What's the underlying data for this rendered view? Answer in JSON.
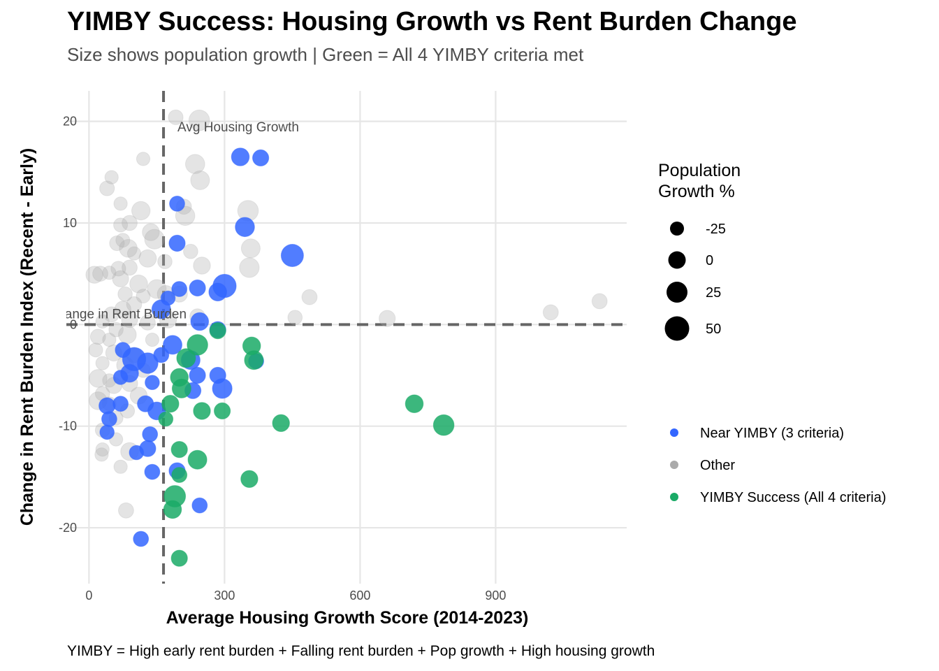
{
  "header": {
    "title": "YIMBY Success: Housing Growth vs Rent Burden Change",
    "subtitle": "Size shows population growth | Green = All 4 YIMBY criteria met"
  },
  "caption": "YIMBY = High early rent burden + Falling rent burden + Pop growth + High housing growth",
  "colors": {
    "near": "#3366ff",
    "other": "#aaaaaa",
    "success": "#1aaa66",
    "refline": "#666666",
    "grid": "#e6e6e6"
  },
  "chart_data": {
    "type": "scatter",
    "title": "YIMBY Success: Housing Growth vs Rent Burden Change",
    "subtitle": "Size shows population growth | Green = All 4 YIMBY criteria met",
    "xlabel": "Average Housing Growth Score (2014-2023)",
    "ylabel": "Change in Rent Burden Index (Recent - Early)",
    "xlim": [
      -50,
      1190
    ],
    "ylim": [
      -25.5,
      23
    ],
    "x_ticks": [
      0,
      300,
      600,
      900
    ],
    "x_tick_labels": [
      "0",
      "300",
      "600",
      "900"
    ],
    "y_ticks": [
      -20,
      -10,
      0,
      10,
      20
    ],
    "y_tick_labels": [
      "-20",
      "-10",
      "0",
      "10",
      "20"
    ],
    "grid": true,
    "reference_lines": [
      {
        "axis": "x",
        "value": 165,
        "style": "dashed",
        "label": "Avg Housing Growth"
      },
      {
        "axis": "y",
        "value": 0,
        "style": "dashed",
        "label": "No Change in Rent Burden"
      }
    ],
    "size_legend": {
      "title": "Population\nGrowth %",
      "entries": [
        {
          "label": "-25",
          "value": -25
        },
        {
          "label": "0",
          "value": 0
        },
        {
          "label": "25",
          "value": 25
        },
        {
          "label": "50",
          "value": 50
        }
      ]
    },
    "color_legend": {
      "placement": "right",
      "entries": [
        {
          "label": "Near YIMBY (3 criteria)",
          "color": "#3366ff"
        },
        {
          "label": "Other",
          "color": "#aaaaaa"
        },
        {
          "label": "YIMBY Success (All 4 criteria)",
          "color": "#1aaa66"
        }
      ]
    },
    "series": [
      {
        "name": "Other",
        "color": "#aaaaaa",
        "points": [
          [
            192,
            20.4,
            5
          ],
          [
            244,
            20.1,
            18
          ],
          [
            120,
            16.3,
            2
          ],
          [
            235,
            15.8,
            15
          ],
          [
            246,
            14.2,
            14
          ],
          [
            50,
            14.5,
            2
          ],
          [
            40,
            13.4,
            5
          ],
          [
            70,
            11.9,
            2
          ],
          [
            115,
            11.2,
            13
          ],
          [
            210,
            11.6,
            6
          ],
          [
            213,
            10.7,
            15
          ],
          [
            90,
            10.0,
            6
          ],
          [
            70,
            9.8,
            3
          ],
          [
            137,
            9.1,
            10
          ],
          [
            145,
            8.4,
            16
          ],
          [
            75,
            8.3,
            3
          ],
          [
            62,
            8.0,
            5
          ],
          [
            87,
            7.5,
            12
          ],
          [
            100,
            7.0,
            2
          ],
          [
            130,
            6.5,
            11
          ],
          [
            168,
            6.2,
            4
          ],
          [
            225,
            7.2,
            4
          ],
          [
            250,
            5.8,
            10
          ],
          [
            90,
            5.6,
            6
          ],
          [
            65,
            5.5,
            5
          ],
          [
            45,
            5.1,
            2
          ],
          [
            25,
            5.0,
            6
          ],
          [
            12,
            4.9,
            10
          ],
          [
            70,
            4.5,
            8
          ],
          [
            110,
            4.0,
            12
          ],
          [
            150,
            3.5,
            14
          ],
          [
            170,
            3.0,
            10
          ],
          [
            80,
            3.0,
            4
          ],
          [
            120,
            2.8,
            3
          ],
          [
            100,
            2.0,
            6
          ],
          [
            75,
            1.5,
            8
          ],
          [
            50,
            1.0,
            6
          ],
          [
            90,
            0.5,
            8
          ],
          [
            30,
            0.3,
            2
          ],
          [
            130,
            0.2,
            6
          ],
          [
            175,
            0.5,
            10
          ],
          [
            60,
            -0.5,
            4
          ],
          [
            20,
            -1.2,
            6
          ],
          [
            45,
            -1.5,
            2
          ],
          [
            85,
            -1.0,
            12
          ],
          [
            140,
            -1.5,
            2
          ],
          [
            15,
            -2.5,
            3
          ],
          [
            55,
            -2.8,
            8
          ],
          [
            100,
            -3.0,
            6
          ],
          [
            30,
            -3.8,
            2
          ],
          [
            80,
            -4.0,
            10
          ],
          [
            120,
            -4.5,
            4
          ],
          [
            20,
            -5.3,
            12
          ],
          [
            45,
            -5.5,
            2
          ],
          [
            90,
            -5.8,
            8
          ],
          [
            55,
            -6.0,
            8
          ],
          [
            30,
            -6.8,
            4
          ],
          [
            110,
            -7.0,
            10
          ],
          [
            20,
            -7.5,
            12
          ],
          [
            45,
            -7.8,
            3
          ],
          [
            85,
            -8.5,
            4
          ],
          [
            60,
            -9.2,
            3
          ],
          [
            30,
            -10.4,
            4
          ],
          [
            60,
            -11.3,
            2
          ],
          [
            30,
            -12.3,
            2
          ],
          [
            90,
            -12.5,
            12
          ],
          [
            28,
            -12.8,
            2
          ],
          [
            70,
            -14.0,
            2
          ],
          [
            82,
            -18.3,
            6
          ],
          [
            352,
            11.2,
            18
          ],
          [
            358,
            7.5,
            14
          ],
          [
            355,
            5.6,
            16
          ],
          [
            488,
            2.7,
            6
          ],
          [
            456,
            0.7,
            4
          ],
          [
            660,
            0.6,
            8
          ],
          [
            1022,
            1.2,
            6
          ],
          [
            1130,
            2.3,
            6
          ],
          [
            200,
            3.0,
            8
          ],
          [
            240,
            0.8,
            6
          ]
        ]
      },
      {
        "name": "Near YIMBY (3 criteria)",
        "color": "#3366ff",
        "points": [
          [
            335,
            16.5,
            12
          ],
          [
            380,
            16.4,
            8
          ],
          [
            195,
            11.9,
            6
          ],
          [
            345,
            9.6,
            15
          ],
          [
            450,
            6.8,
            22
          ],
          [
            195,
            8.0,
            8
          ],
          [
            300,
            3.8,
            24
          ],
          [
            285,
            3.2,
            12
          ],
          [
            240,
            3.6,
            8
          ],
          [
            200,
            3.5,
            6
          ],
          [
            175,
            2.6,
            4
          ],
          [
            160,
            1.5,
            14
          ],
          [
            245,
            0.3,
            12
          ],
          [
            285,
            -0.5,
            8
          ],
          [
            75,
            -2.5,
            6
          ],
          [
            100,
            -3.4,
            24
          ],
          [
            130,
            -3.8,
            18
          ],
          [
            185,
            -2.0,
            14
          ],
          [
            160,
            -3.0,
            6
          ],
          [
            225,
            -3.5,
            14
          ],
          [
            70,
            -5.2,
            4
          ],
          [
            90,
            -4.8,
            12
          ],
          [
            140,
            -5.7,
            4
          ],
          [
            240,
            -5.0,
            8
          ],
          [
            285,
            -5.0,
            8
          ],
          [
            230,
            -6.5,
            8
          ],
          [
            295,
            -6.3,
            16
          ],
          [
            70,
            -7.8,
            6
          ],
          [
            40,
            -8.0,
            8
          ],
          [
            125,
            -7.8,
            8
          ],
          [
            150,
            -8.5,
            12
          ],
          [
            45,
            -9.3,
            6
          ],
          [
            40,
            -10.6,
            4
          ],
          [
            135,
            -10.8,
            6
          ],
          [
            105,
            -12.6,
            4
          ],
          [
            130,
            -12.2,
            8
          ],
          [
            140,
            -14.5,
            6
          ],
          [
            195,
            -14.4,
            8
          ],
          [
            245,
            -17.8,
            6
          ],
          [
            115,
            -21.1,
            6
          ],
          [
            370,
            -3.6,
            6
          ]
        ]
      },
      {
        "name": "YIMBY Success (All 4 criteria)",
        "color": "#1aaa66",
        "points": [
          [
            285,
            -0.6,
            8
          ],
          [
            240,
            -2.0,
            18
          ],
          [
            215,
            -3.3,
            14
          ],
          [
            360,
            -2.1,
            12
          ],
          [
            365,
            -3.5,
            14
          ],
          [
            200,
            -5.2,
            12
          ],
          [
            205,
            -6.3,
            14
          ],
          [
            180,
            -7.8,
            10
          ],
          [
            250,
            -8.5,
            10
          ],
          [
            295,
            -8.5,
            8
          ],
          [
            170,
            -9.3,
            4
          ],
          [
            425,
            -9.7,
            10
          ],
          [
            720,
            -7.8,
            12
          ],
          [
            785,
            -9.9,
            18
          ],
          [
            200,
            -12.3,
            8
          ],
          [
            240,
            -13.3,
            14
          ],
          [
            200,
            -14.8,
            6
          ],
          [
            190,
            -16.9,
            20
          ],
          [
            185,
            -18.2,
            12
          ],
          [
            355,
            -15.2,
            10
          ],
          [
            200,
            -23.0,
            8
          ]
        ]
      }
    ]
  }
}
